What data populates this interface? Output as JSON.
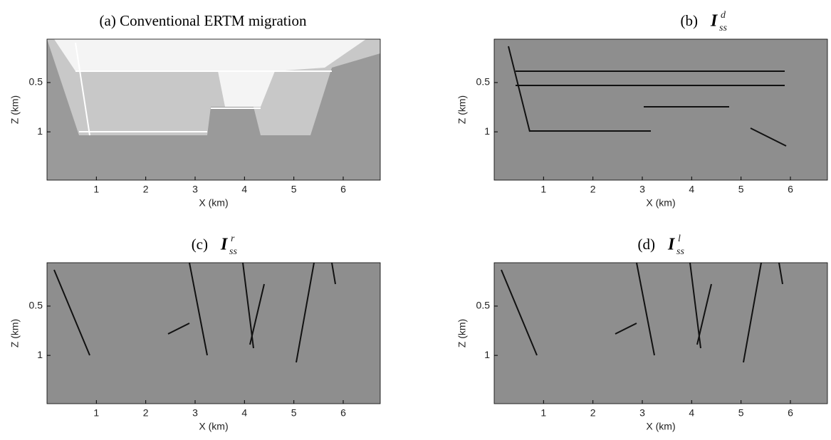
{
  "chart_data": [
    {
      "type": "image",
      "title": "(a)   Conventional ERTM migration",
      "x_label": "X (km)",
      "y_label": "Z (km)",
      "xlim": [
        0,
        6.75
      ],
      "ylim": [
        0.06,
        1.49
      ],
      "xticks": [
        1,
        2,
        3,
        4,
        5,
        6
      ],
      "yticks": [
        0.5,
        1
      ]
    },
    {
      "type": "image",
      "title": "(b)",
      "symbol": "I",
      "subscript": "ss",
      "superscript": "d",
      "x_label": "X (km)",
      "y_label": "Z (km)",
      "xlim": [
        0,
        6.75
      ],
      "ylim": [
        0.06,
        1.49
      ],
      "xticks": [
        1,
        2,
        3,
        4,
        5,
        6
      ],
      "yticks": [
        0.5,
        1
      ]
    },
    {
      "type": "image",
      "title": "(c)",
      "symbol": "I",
      "subscript": "ss",
      "superscript": "r",
      "x_label": "X (km)",
      "y_label": "Z (km)",
      "xlim": [
        0,
        6.75
      ],
      "ylim": [
        0.06,
        1.49
      ],
      "xticks": [
        1,
        2,
        3,
        4,
        5,
        6
      ],
      "yticks": [
        0.5,
        1
      ]
    },
    {
      "type": "image",
      "title": "(d)",
      "symbol": "I",
      "subscript": "ss",
      "superscript": "l",
      "x_label": "X (km)",
      "y_label": "Z (km)",
      "xlim": [
        0,
        6.75
      ],
      "ylim": [
        0.06,
        1.49
      ],
      "xticks": [
        1,
        2,
        3,
        4,
        5,
        6
      ],
      "yticks": [
        0.5,
        1
      ]
    }
  ]
}
